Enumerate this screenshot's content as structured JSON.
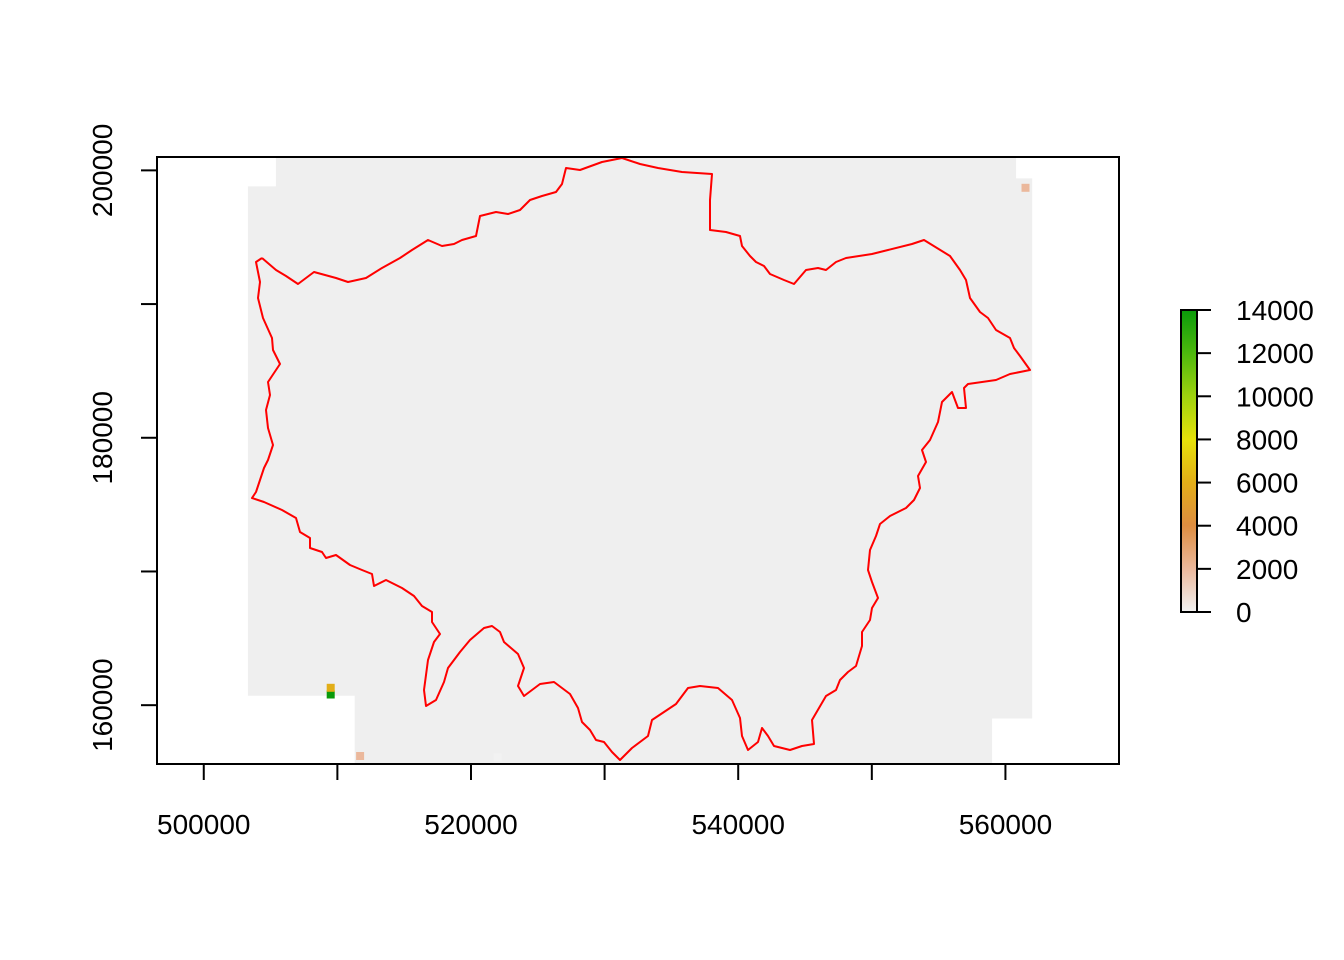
{
  "chart_data": {
    "type": "heatmap",
    "title": "",
    "xlabel": "",
    "ylabel": "",
    "x_ticks": [
      500000,
      510000,
      520000,
      530000,
      540000,
      550000,
      560000
    ],
    "x_tick_labels": [
      "500000",
      "520000",
      "540000",
      "560000"
    ],
    "y_ticks": [
      160000,
      170000,
      180000,
      190000,
      200000
    ],
    "y_tick_labels": [
      "160000",
      "180000",
      "200000"
    ],
    "xlim": [
      496500,
      568500
    ],
    "ylim": [
      155600,
      201000
    ],
    "raster_extent": {
      "xmin": 503300,
      "xmax": 562000,
      "ymin": 155600,
      "ymax": 201000
    },
    "raster_base_color": "#efefef",
    "boundary_color": "#ff0000",
    "hotspots": [
      {
        "x": 509500,
        "y": 160800,
        "value": 14000
      },
      {
        "x": 509500,
        "y": 161300,
        "value": 5000
      },
      {
        "x": 561500,
        "y": 198700,
        "value": 2500
      },
      {
        "x": 511700,
        "y": 156200,
        "value": 2200
      },
      {
        "x": 522000,
        "y": 156100,
        "value": 900
      }
    ],
    "colorbar": {
      "min": 0,
      "max": 14000,
      "ticks": [
        "0",
        "2000",
        "4000",
        "6000",
        "8000",
        "10000",
        "12000",
        "14000"
      ],
      "colors": [
        "#f2f2f2",
        "#ebb89c",
        "#dd8d41",
        "#e2ae18",
        "#e6e20a",
        "#9fd20e",
        "#4db80d",
        "#0a9a0a"
      ]
    }
  }
}
